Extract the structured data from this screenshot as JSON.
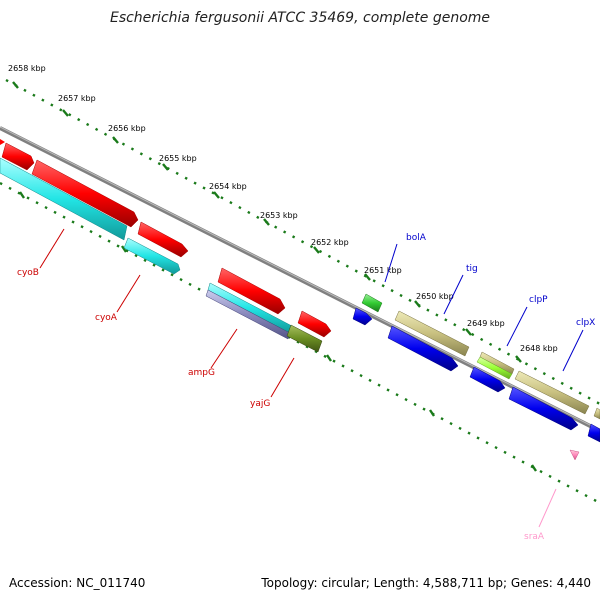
{
  "title": "Escherichia fergusonii ATCC 35469, complete genome",
  "footer": {
    "accession": "Accession: NC_011740",
    "summary": "Topology: circular; Length: 4,588,711 bp; Genes: 4,440"
  },
  "ticks": [
    "2658 kbp",
    "2657 kbp",
    "2656 kbp",
    "2655 kbp",
    "2654 kbp",
    "2653 kbp",
    "2652 kbp",
    "2651 kbp",
    "2650 kbp",
    "2649 kbp",
    "2648 kbp"
  ],
  "genes": [
    {
      "name": "cyoB",
      "color": "#cc0000"
    },
    {
      "name": "cyoA",
      "color": "#cc0000"
    },
    {
      "name": "ampG",
      "color": "#cc0000"
    },
    {
      "name": "yajG",
      "color": "#cc0000"
    },
    {
      "name": "bolA",
      "color": "#0000cc"
    },
    {
      "name": "tig",
      "color": "#0000cc"
    },
    {
      "name": "clpP",
      "color": "#0000cc"
    },
    {
      "name": "clpX",
      "color": "#0000cc"
    },
    {
      "name": "sraA",
      "color": "#ff99cc"
    }
  ],
  "colors": {
    "backbone": "#808080",
    "tick": "#1a7a1a",
    "red_feature": "#ff0000",
    "cyan_feature": "#22e5e5",
    "blue_feature": "#0000ee",
    "khaki_feature": "#c8c080",
    "olive_feature": "#6b8e23",
    "green_feature": "#33cc33",
    "lime_feature": "#99ff33",
    "pink_feature": "#ff88bb"
  }
}
